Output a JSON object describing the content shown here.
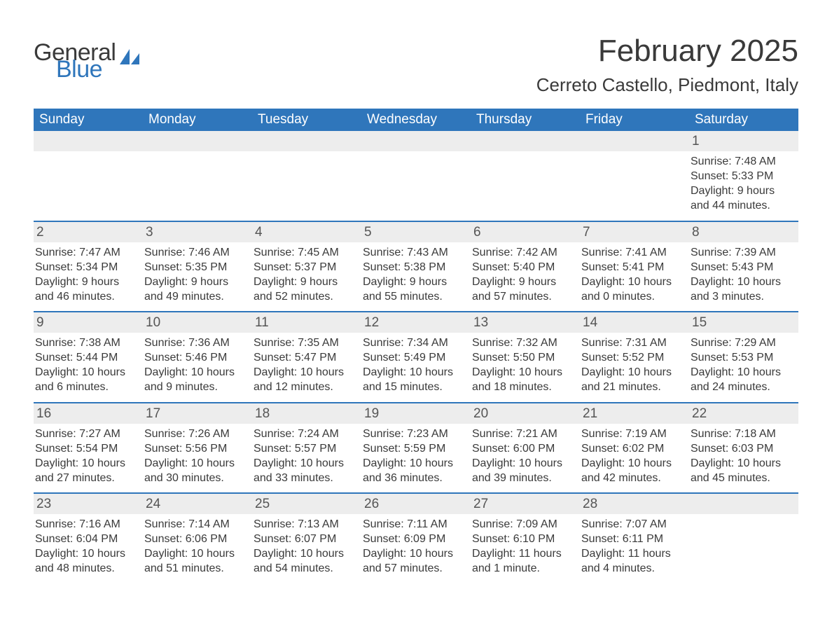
{
  "logo": {
    "word1": "General",
    "word2": "Blue",
    "brand_color": "#2f76bb"
  },
  "title": "February 2025",
  "location": "Cerreto Castello, Piedmont, Italy",
  "colors": {
    "header_bg": "#2f76bb",
    "header_text": "#ffffff",
    "band_bg": "#ededed",
    "text": "#3a3a3a",
    "week_border": "#2f76bb"
  },
  "day_names": [
    "Sunday",
    "Monday",
    "Tuesday",
    "Wednesday",
    "Thursday",
    "Friday",
    "Saturday"
  ],
  "weeks": [
    [
      null,
      null,
      null,
      null,
      null,
      null,
      {
        "n": "1",
        "sr": "Sunrise: 7:48 AM",
        "ss": "Sunset: 5:33 PM",
        "dl": "Daylight: 9 hours and 44 minutes."
      }
    ],
    [
      {
        "n": "2",
        "sr": "Sunrise: 7:47 AM",
        "ss": "Sunset: 5:34 PM",
        "dl": "Daylight: 9 hours and 46 minutes."
      },
      {
        "n": "3",
        "sr": "Sunrise: 7:46 AM",
        "ss": "Sunset: 5:35 PM",
        "dl": "Daylight: 9 hours and 49 minutes."
      },
      {
        "n": "4",
        "sr": "Sunrise: 7:45 AM",
        "ss": "Sunset: 5:37 PM",
        "dl": "Daylight: 9 hours and 52 minutes."
      },
      {
        "n": "5",
        "sr": "Sunrise: 7:43 AM",
        "ss": "Sunset: 5:38 PM",
        "dl": "Daylight: 9 hours and 55 minutes."
      },
      {
        "n": "6",
        "sr": "Sunrise: 7:42 AM",
        "ss": "Sunset: 5:40 PM",
        "dl": "Daylight: 9 hours and 57 minutes."
      },
      {
        "n": "7",
        "sr": "Sunrise: 7:41 AM",
        "ss": "Sunset: 5:41 PM",
        "dl": "Daylight: 10 hours and 0 minutes."
      },
      {
        "n": "8",
        "sr": "Sunrise: 7:39 AM",
        "ss": "Sunset: 5:43 PM",
        "dl": "Daylight: 10 hours and 3 minutes."
      }
    ],
    [
      {
        "n": "9",
        "sr": "Sunrise: 7:38 AM",
        "ss": "Sunset: 5:44 PM",
        "dl": "Daylight: 10 hours and 6 minutes."
      },
      {
        "n": "10",
        "sr": "Sunrise: 7:36 AM",
        "ss": "Sunset: 5:46 PM",
        "dl": "Daylight: 10 hours and 9 minutes."
      },
      {
        "n": "11",
        "sr": "Sunrise: 7:35 AM",
        "ss": "Sunset: 5:47 PM",
        "dl": "Daylight: 10 hours and 12 minutes."
      },
      {
        "n": "12",
        "sr": "Sunrise: 7:34 AM",
        "ss": "Sunset: 5:49 PM",
        "dl": "Daylight: 10 hours and 15 minutes."
      },
      {
        "n": "13",
        "sr": "Sunrise: 7:32 AM",
        "ss": "Sunset: 5:50 PM",
        "dl": "Daylight: 10 hours and 18 minutes."
      },
      {
        "n": "14",
        "sr": "Sunrise: 7:31 AM",
        "ss": "Sunset: 5:52 PM",
        "dl": "Daylight: 10 hours and 21 minutes."
      },
      {
        "n": "15",
        "sr": "Sunrise: 7:29 AM",
        "ss": "Sunset: 5:53 PM",
        "dl": "Daylight: 10 hours and 24 minutes."
      }
    ],
    [
      {
        "n": "16",
        "sr": "Sunrise: 7:27 AM",
        "ss": "Sunset: 5:54 PM",
        "dl": "Daylight: 10 hours and 27 minutes."
      },
      {
        "n": "17",
        "sr": "Sunrise: 7:26 AM",
        "ss": "Sunset: 5:56 PM",
        "dl": "Daylight: 10 hours and 30 minutes."
      },
      {
        "n": "18",
        "sr": "Sunrise: 7:24 AM",
        "ss": "Sunset: 5:57 PM",
        "dl": "Daylight: 10 hours and 33 minutes."
      },
      {
        "n": "19",
        "sr": "Sunrise: 7:23 AM",
        "ss": "Sunset: 5:59 PM",
        "dl": "Daylight: 10 hours and 36 minutes."
      },
      {
        "n": "20",
        "sr": "Sunrise: 7:21 AM",
        "ss": "Sunset: 6:00 PM",
        "dl": "Daylight: 10 hours and 39 minutes."
      },
      {
        "n": "21",
        "sr": "Sunrise: 7:19 AM",
        "ss": "Sunset: 6:02 PM",
        "dl": "Daylight: 10 hours and 42 minutes."
      },
      {
        "n": "22",
        "sr": "Sunrise: 7:18 AM",
        "ss": "Sunset: 6:03 PM",
        "dl": "Daylight: 10 hours and 45 minutes."
      }
    ],
    [
      {
        "n": "23",
        "sr": "Sunrise: 7:16 AM",
        "ss": "Sunset: 6:04 PM",
        "dl": "Daylight: 10 hours and 48 minutes."
      },
      {
        "n": "24",
        "sr": "Sunrise: 7:14 AM",
        "ss": "Sunset: 6:06 PM",
        "dl": "Daylight: 10 hours and 51 minutes."
      },
      {
        "n": "25",
        "sr": "Sunrise: 7:13 AM",
        "ss": "Sunset: 6:07 PM",
        "dl": "Daylight: 10 hours and 54 minutes."
      },
      {
        "n": "26",
        "sr": "Sunrise: 7:11 AM",
        "ss": "Sunset: 6:09 PM",
        "dl": "Daylight: 10 hours and 57 minutes."
      },
      {
        "n": "27",
        "sr": "Sunrise: 7:09 AM",
        "ss": "Sunset: 6:10 PM",
        "dl": "Daylight: 11 hours and 1 minute."
      },
      {
        "n": "28",
        "sr": "Sunrise: 7:07 AM",
        "ss": "Sunset: 6:11 PM",
        "dl": "Daylight: 11 hours and 4 minutes."
      },
      null
    ]
  ]
}
